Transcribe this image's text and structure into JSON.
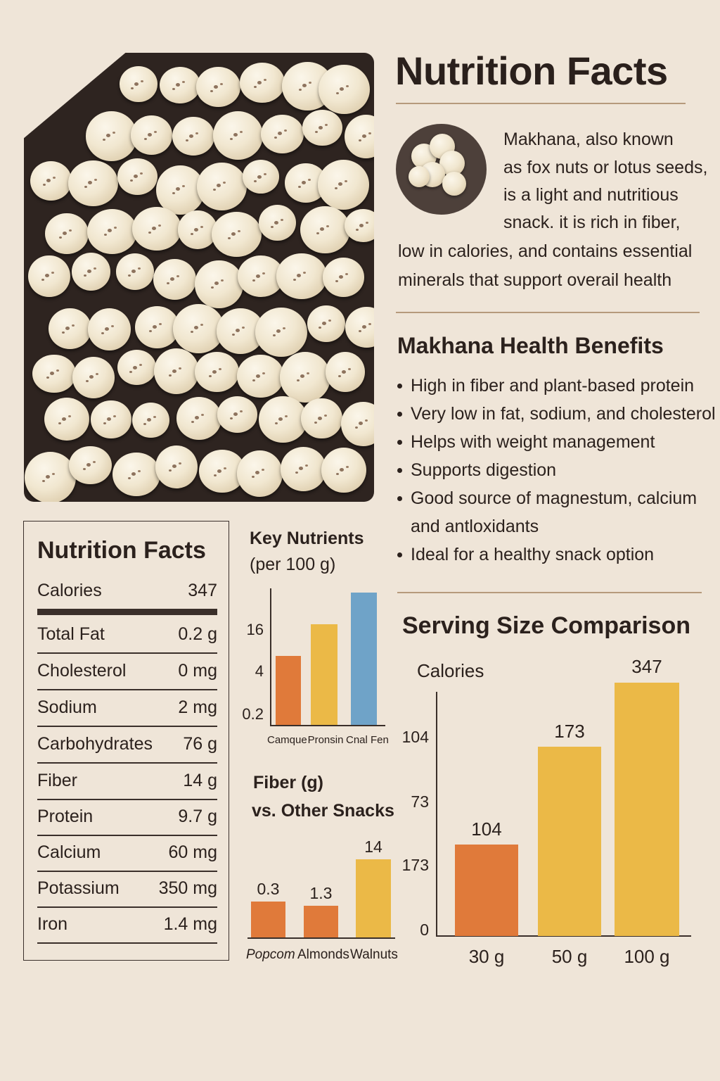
{
  "header": {
    "title": "Nutrition Facts"
  },
  "intro": {
    "lines": [
      "Makhana, also known",
      "as fox nuts or lotus seeds,",
      "is a light and nutritious",
      "snack. it is rich in fiber,",
      "low in calories, and contains essential",
      "minerals that support overail health"
    ]
  },
  "benefits": {
    "title": "Makhana Health Benefits",
    "items": [
      "High in fiber and plant-based protein",
      "Very low in fat, sodium, and cholesterol",
      "Helps with weight management",
      "Supports digestion",
      "Good source of magnestum, calcium",
      "and antloxidants",
      "Ideal for a healthy snack option"
    ]
  },
  "nutrition_facts": {
    "title": "Nutrition Facts",
    "calories": {
      "label": "Calories",
      "value": "347"
    },
    "rows": [
      {
        "label": "Total Fat",
        "value": "0.2 g"
      },
      {
        "label": "Cholesterol",
        "value": "0 mg"
      },
      {
        "label": "Sodium",
        "value": "2 mg"
      },
      {
        "label": "Carbohydrates",
        "value": "76 g"
      },
      {
        "label": "Fiber",
        "value": "14 g"
      },
      {
        "label": "Protein",
        "value": "9.7 g"
      },
      {
        "label": "Calcium",
        "value": "60 mg"
      },
      {
        "label": "Potassium",
        "value": "350 mg"
      },
      {
        "label": "Iron",
        "value": "1.4 mg"
      }
    ]
  },
  "colors": {
    "background": "#efe5d8",
    "text": "#2b211d",
    "orange": "#e07a3a",
    "yellow": "#ebb947",
    "blue": "#6fa3c8",
    "board": "#2e2420",
    "rule": "#b69a7c"
  },
  "chart_data": [
    {
      "id": "key_nutrients",
      "type": "bar",
      "title": "Key Nutrients",
      "subtitle": "(per 100 g)",
      "categories": [
        "Camque",
        "Pronsin",
        "Cnal Fen"
      ],
      "values": [
        9.7,
        14,
        20
      ],
      "colors": [
        "#e07a3a",
        "#ebb947",
        "#6fa3c8"
      ],
      "yticks": [
        "16",
        "4",
        "0.2"
      ],
      "xlabel": "",
      "ylabel": "",
      "grid": false
    },
    {
      "id": "fiber_vs_snacks",
      "type": "bar",
      "title": "Fiber (g)",
      "subtitle": "vs. Other Snacks",
      "categories": [
        "Popcom",
        "Almonds",
        "Walnuts"
      ],
      "values": [
        0.3,
        1.3,
        14
      ],
      "value_labels": [
        "0.3",
        "1.3",
        "14"
      ],
      "colors": [
        "#e07a3a",
        "#e07a3a",
        "#ebb947"
      ],
      "grid": false
    },
    {
      "id": "serving_size",
      "type": "bar",
      "title": "Serving Size Comparison",
      "ylabel": "Calories",
      "categories": [
        "30 g",
        "50 g",
        "100 g"
      ],
      "values": [
        104,
        173,
        347
      ],
      "value_labels": [
        "104",
        "173",
        "347"
      ],
      "colors": [
        "#e07a3a",
        "#ebb947",
        "#ebb947"
      ],
      "yticks": [
        "104",
        "73",
        "173",
        "0"
      ],
      "grid": false
    }
  ]
}
